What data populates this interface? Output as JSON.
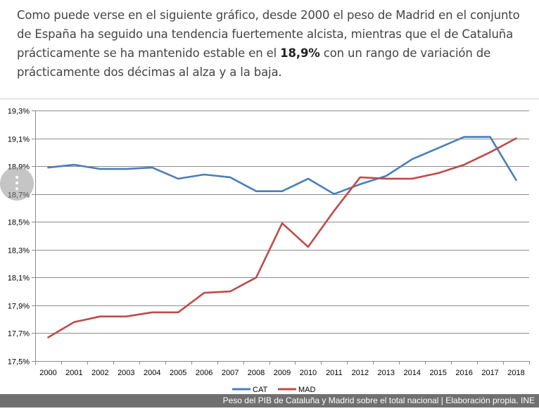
{
  "article": {
    "para_before": "Como puede verse en el siguiente gráfico, desde 2000 el peso de Madrid en el conjunto de España ha seguido una tendencia fuertemente alcista, mientras que el de Cataluña prácticamente se ha mantenido estable en el ",
    "para_bold": "18,9%",
    "para_after": " con un rango de variación de prácticamente dos décimas al alza y a la baja."
  },
  "caption": "Peso del PIB de Cataluña y Madrid sobre el total nacional | Elaboración propia. INE",
  "menu_icon": "vertical-dots-icon",
  "chart_data": {
    "type": "line",
    "x": [
      "2000",
      "2001",
      "2002",
      "2003",
      "2004",
      "2005",
      "2006",
      "2007",
      "2008",
      "2009",
      "2010",
      "2011",
      "2012",
      "2013",
      "2014",
      "2015",
      "2016",
      "2017",
      "2018"
    ],
    "yticks": [
      "17,5%",
      "17,7%",
      "17,9%",
      "18,1%",
      "18,3%",
      "18,5%",
      "18,7%",
      "18,9%",
      "19,1%",
      "19,3%"
    ],
    "ylim": [
      17.5,
      19.3
    ],
    "grid": true,
    "legend_position": "bottom",
    "series": [
      {
        "name": "CAT",
        "color": "#4A7EBB",
        "values": [
          18.89,
          18.91,
          18.88,
          18.88,
          18.89,
          18.81,
          18.84,
          18.82,
          18.72,
          18.72,
          18.81,
          18.7,
          18.77,
          18.83,
          18.95,
          19.03,
          19.11,
          19.11,
          18.8
        ]
      },
      {
        "name": "MAD",
        "color": "#BE4B48",
        "values": [
          17.67,
          17.78,
          17.82,
          17.82,
          17.85,
          17.85,
          17.99,
          18.0,
          18.1,
          18.49,
          18.32,
          18.58,
          18.82,
          18.81,
          18.81,
          18.85,
          18.91,
          19.0,
          19.1
        ]
      }
    ]
  }
}
